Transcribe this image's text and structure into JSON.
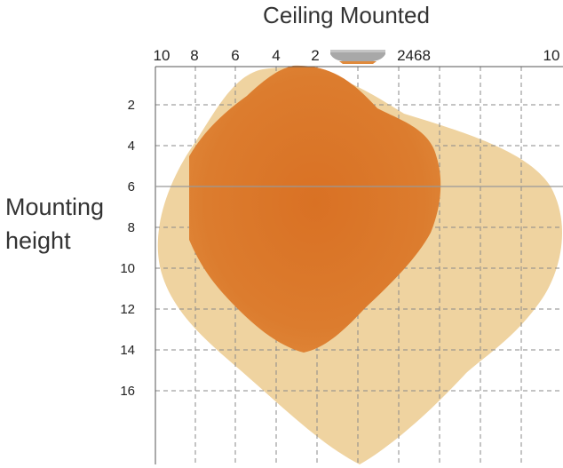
{
  "title": "Ceiling Mounted",
  "y_axis_label": [
    "Mounting",
    "height"
  ],
  "x_ticks_left": [
    "10",
    "8",
    "6",
    "4",
    "2"
  ],
  "x_ticks_right": [
    "2468",
    "10"
  ],
  "y_ticks": [
    "2",
    "4",
    "6",
    "8",
    "10",
    "12",
    "14",
    "16"
  ],
  "colors": {
    "outer_zone": "#efd3a0",
    "inner_zone": "#d9772b",
    "grid": "#8a8a8a",
    "reference_line": "#999999",
    "fixture": "#a8a8a8"
  },
  "icons": {
    "fixture": "ceiling-fixture-icon"
  }
}
